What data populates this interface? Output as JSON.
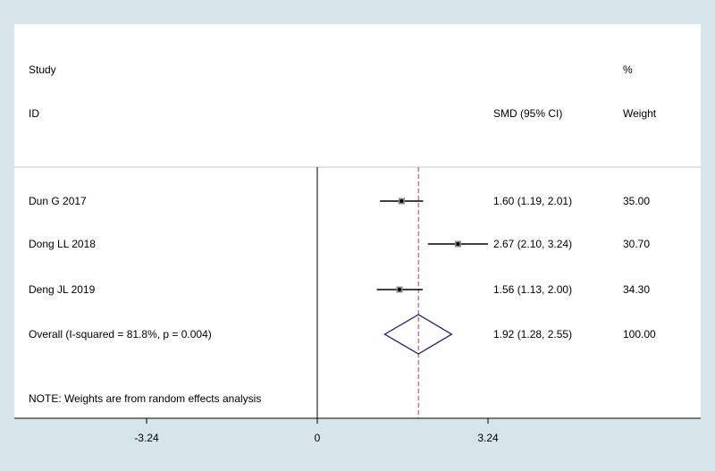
{
  "chart_data": {
    "type": "forest",
    "header": {
      "study_line1": "Study",
      "study_line2": "ID",
      "effect_label": "SMD (95% CI)",
      "weight_line1": "%",
      "weight_line2": "Weight"
    },
    "studies": [
      {
        "id": "Dun G 2017",
        "est": 1.6,
        "lo": 1.19,
        "hi": 2.01,
        "ci_text": "1.60 (1.19, 2.01)",
        "weight": "35.00"
      },
      {
        "id": "Dong LL 2018",
        "est": 2.67,
        "lo": 2.1,
        "hi": 3.24,
        "ci_text": "2.67 (2.10, 3.24)",
        "weight": "30.70"
      },
      {
        "id": "Deng JL 2019",
        "est": 1.56,
        "lo": 1.13,
        "hi": 2.0,
        "ci_text": "1.56 (1.13, 2.00)",
        "weight": "34.30"
      }
    ],
    "overall": {
      "label": "Overall  (I-squared = 81.8%, p = 0.004)",
      "est": 1.92,
      "lo": 1.28,
      "hi": 2.55,
      "ci_text": "1.92 (1.28, 2.55)",
      "weight": "100.00"
    },
    "note": "NOTE: Weights are from random effects analysis",
    "x_ticks": [
      -3.24,
      0,
      3.24
    ],
    "x_tick_labels": [
      "-3.24",
      "0",
      "3.24"
    ],
    "xlim": [
      -3.24,
      3.24
    ],
    "colors": {
      "background": "#d6e5ea",
      "panel": "#ffffff",
      "overall_diamond": "#1a1a7a",
      "overall_line": "#c0392b",
      "header_rule": "#c8c8c8"
    }
  }
}
